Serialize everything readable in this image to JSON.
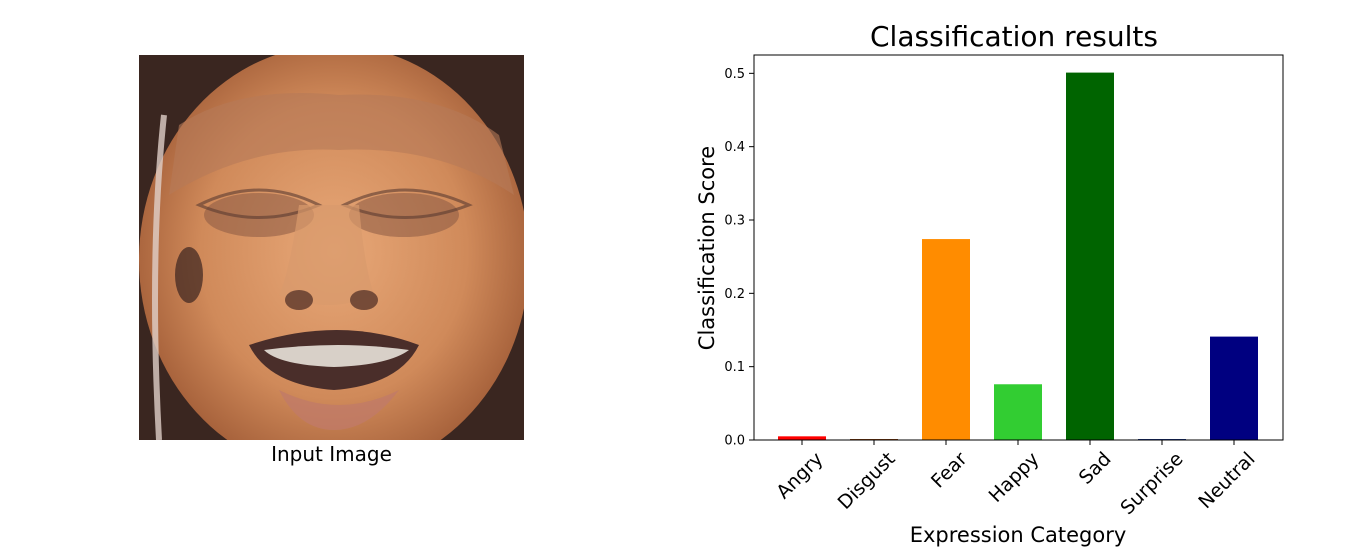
{
  "figure": {
    "image_caption": "Input Image"
  },
  "chart_data": {
    "type": "bar",
    "title": "Classification results",
    "xlabel": "Expression Category",
    "ylabel": "Classification Score",
    "categories": [
      "Angry",
      "Disgust",
      "Fear",
      "Happy",
      "Sad",
      "Surprise",
      "Neutral"
    ],
    "values": [
      0.005,
      0.001,
      0.274,
      0.076,
      0.501,
      0.001,
      0.141
    ],
    "colors": [
      "#ff0000",
      "#8b4513",
      "#ff8c00",
      "#32cd32",
      "#006400",
      "#1e3a8a",
      "#000080"
    ],
    "ylim": [
      0,
      0.525
    ],
    "yticks": [
      "0.0",
      "0.1",
      "0.2",
      "0.3",
      "0.4",
      "0.5"
    ],
    "grid": false,
    "legend": "none"
  }
}
